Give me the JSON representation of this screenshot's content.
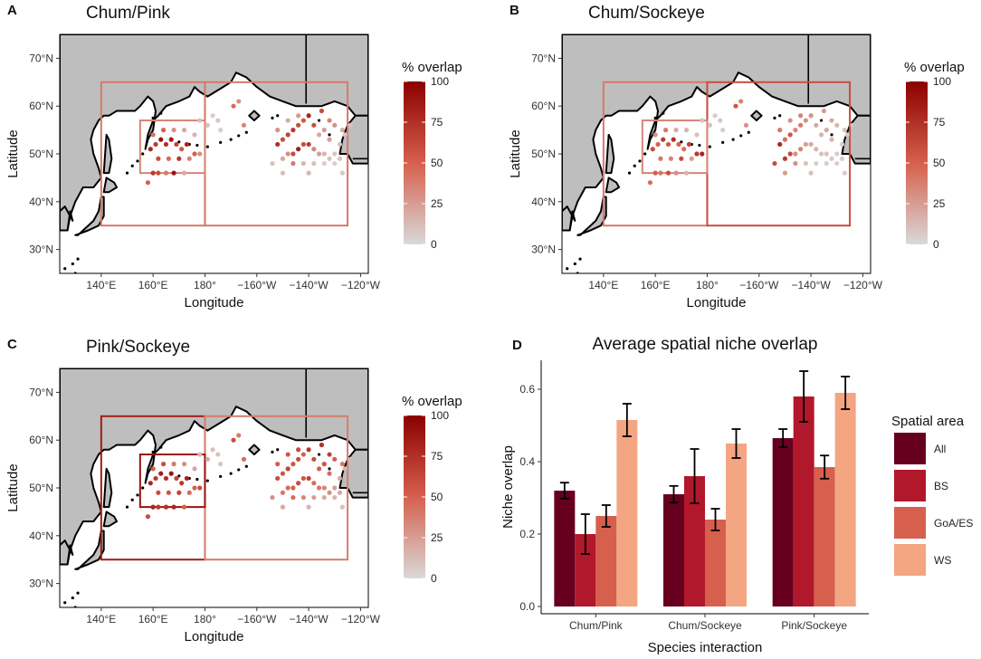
{
  "palette": {
    "all": "#67001f",
    "bs": "#b2182b",
    "goa_es": "#d6604d",
    "ws": "#f4a582",
    "overlap_low": "#d9d9d9",
    "overlap_mid": "#d6604d",
    "overlap_high": "#8b0000",
    "land": "#bebebe",
    "ocean": "#ffffff"
  },
  "maps": [
    {
      "letter": "A",
      "title": "Chum/Pink",
      "boxes": [
        {
          "name": "WS",
          "lon": [
            140,
            180
          ],
          "lat": [
            35,
            65
          ],
          "overlap": 40
        },
        {
          "name": "GoA/ES",
          "lon": [
            180,
            235
          ],
          "lat": [
            35,
            65
          ],
          "overlap": 40
        },
        {
          "name": "BS",
          "lon": [
            155,
            180
          ],
          "lat": [
            46,
            57
          ],
          "overlap": 35
        }
      ],
      "points": [
        [
          160,
          46,
          70
        ],
        [
          162,
          46,
          60
        ],
        [
          165,
          46,
          40
        ],
        [
          168,
          46,
          90
        ],
        [
          172,
          46,
          20
        ],
        [
          158,
          44,
          50
        ],
        [
          159,
          51,
          80
        ],
        [
          161,
          52,
          70
        ],
        [
          163,
          53,
          90
        ],
        [
          165,
          52,
          75
        ],
        [
          167,
          53,
          85
        ],
        [
          169,
          52,
          65
        ],
        [
          171,
          51,
          55
        ],
        [
          173,
          52,
          80
        ],
        [
          162,
          49,
          60
        ],
        [
          166,
          49,
          45
        ],
        [
          170,
          49,
          70
        ],
        [
          174,
          49,
          35
        ],
        [
          176,
          50,
          50
        ],
        [
          178,
          50,
          30
        ],
        [
          160,
          54,
          40
        ],
        [
          164,
          55,
          50
        ],
        [
          168,
          55,
          30
        ],
        [
          172,
          55,
          20
        ],
        [
          176,
          54,
          15
        ],
        [
          178,
          57,
          10
        ],
        [
          181,
          56,
          10
        ],
        [
          183,
          58,
          5
        ],
        [
          185,
          57,
          8
        ],
        [
          186,
          55,
          5
        ],
        [
          191,
          60,
          45
        ],
        [
          193,
          61,
          30
        ],
        [
          195,
          56,
          35
        ],
        [
          208,
          52,
          75
        ],
        [
          210,
          53,
          60
        ],
        [
          212,
          54,
          65
        ],
        [
          214,
          55,
          70
        ],
        [
          216,
          56,
          60
        ],
        [
          218,
          57,
          55
        ],
        [
          220,
          58,
          80
        ],
        [
          222,
          56,
          60
        ],
        [
          224,
          54,
          20
        ],
        [
          226,
          55,
          25
        ],
        [
          212,
          50,
          30
        ],
        [
          214,
          50,
          60
        ],
        [
          216,
          51,
          85
        ],
        [
          218,
          52,
          60
        ],
        [
          220,
          52,
          70
        ],
        [
          222,
          51,
          35
        ],
        [
          224,
          50,
          25
        ],
        [
          226,
          50,
          15
        ],
        [
          228,
          49,
          10
        ],
        [
          230,
          50,
          8
        ],
        [
          232,
          49,
          10
        ],
        [
          210,
          49,
          20
        ],
        [
          214,
          48,
          40
        ],
        [
          218,
          48,
          15
        ],
        [
          222,
          48,
          10
        ],
        [
          226,
          48,
          5
        ],
        [
          230,
          48,
          5
        ],
        [
          232,
          52,
          10
        ],
        [
          234,
          54,
          8
        ],
        [
          206,
          48,
          10
        ],
        [
          208,
          55,
          30
        ],
        [
          212,
          57,
          20
        ],
        [
          216,
          58,
          25
        ],
        [
          225,
          59,
          60
        ],
        [
          228,
          57,
          35
        ],
        [
          230,
          56,
          30
        ],
        [
          233,
          55,
          20
        ],
        [
          228,
          53,
          25
        ],
        [
          236,
          56,
          10
        ],
        [
          210,
          46,
          12
        ],
        [
          220,
          46,
          15
        ],
        [
          233,
          46,
          8
        ]
      ]
    },
    {
      "letter": "B",
      "title": "Chum/Sockeye",
      "boxes": [
        {
          "name": "WS",
          "lon": [
            140,
            180
          ],
          "lat": [
            35,
            65
          ],
          "overlap": 40
        },
        {
          "name": "GoA/ES",
          "lon": [
            180,
            235
          ],
          "lat": [
            35,
            65
          ],
          "overlap": 60
        },
        {
          "name": "BS",
          "lon": [
            155,
            180
          ],
          "lat": [
            46,
            57
          ],
          "overlap": 35
        }
      ],
      "points": [
        [
          160,
          46,
          50
        ],
        [
          162,
          46,
          40
        ],
        [
          165,
          46,
          60
        ],
        [
          168,
          46,
          30
        ],
        [
          158,
          44,
          45
        ],
        [
          172,
          46,
          15
        ],
        [
          159,
          51,
          60
        ],
        [
          161,
          52,
          50
        ],
        [
          163,
          53,
          70
        ],
        [
          165,
          52,
          55
        ],
        [
          167,
          53,
          75
        ],
        [
          169,
          52,
          50
        ],
        [
          171,
          51,
          45
        ],
        [
          173,
          52,
          65
        ],
        [
          162,
          49,
          40
        ],
        [
          166,
          49,
          35
        ],
        [
          170,
          49,
          60
        ],
        [
          174,
          49,
          25
        ],
        [
          176,
          50,
          70
        ],
        [
          178,
          50,
          80
        ],
        [
          160,
          54,
          30
        ],
        [
          164,
          55,
          40
        ],
        [
          168,
          55,
          20
        ],
        [
          172,
          55,
          15
        ],
        [
          176,
          54,
          10
        ],
        [
          178,
          57,
          10
        ],
        [
          181,
          56,
          10
        ],
        [
          183,
          58,
          5
        ],
        [
          185,
          57,
          8
        ],
        [
          186,
          55,
          5
        ],
        [
          191,
          60,
          55
        ],
        [
          193,
          61,
          35
        ],
        [
          195,
          56,
          30
        ],
        [
          208,
          52,
          80
        ],
        [
          210,
          53,
          45
        ],
        [
          212,
          54,
          55
        ],
        [
          214,
          55,
          35
        ],
        [
          216,
          56,
          40
        ],
        [
          218,
          57,
          30
        ],
        [
          220,
          58,
          30
        ],
        [
          222,
          56,
          20
        ],
        [
          224,
          54,
          15
        ],
        [
          226,
          55,
          20
        ],
        [
          212,
          50,
          60
        ],
        [
          214,
          50,
          30
        ],
        [
          216,
          51,
          35
        ],
        [
          218,
          52,
          25
        ],
        [
          220,
          52,
          20
        ],
        [
          222,
          51,
          15
        ],
        [
          224,
          50,
          10
        ],
        [
          226,
          50,
          10
        ],
        [
          228,
          49,
          8
        ],
        [
          230,
          50,
          5
        ],
        [
          232,
          49,
          5
        ],
        [
          210,
          49,
          70
        ],
        [
          214,
          48,
          30
        ],
        [
          218,
          48,
          10
        ],
        [
          222,
          48,
          5
        ],
        [
          226,
          48,
          5
        ],
        [
          230,
          48,
          5
        ],
        [
          232,
          52,
          5
        ],
        [
          234,
          54,
          5
        ],
        [
          206,
          48,
          60
        ],
        [
          208,
          55,
          40
        ],
        [
          212,
          57,
          30
        ],
        [
          216,
          58,
          35
        ],
        [
          225,
          59,
          25
        ],
        [
          228,
          57,
          20
        ],
        [
          230,
          56,
          15
        ],
        [
          233,
          55,
          10
        ],
        [
          228,
          53,
          15
        ],
        [
          236,
          56,
          10
        ],
        [
          210,
          46,
          25
        ],
        [
          220,
          46,
          10
        ],
        [
          233,
          46,
          5
        ]
      ]
    },
    {
      "letter": "C",
      "title": "Pink/Sockeye",
      "boxes": [
        {
          "name": "WS",
          "lon": [
            140,
            180
          ],
          "lat": [
            35,
            65
          ],
          "overlap": 85
        },
        {
          "name": "GoA/ES",
          "lon": [
            180,
            235
          ],
          "lat": [
            35,
            65
          ],
          "overlap": 38
        },
        {
          "name": "BS",
          "lon": [
            155,
            180
          ],
          "lat": [
            46,
            57
          ],
          "overlap": 90
        }
      ],
      "points": [
        [
          160,
          46,
          80
        ],
        [
          162,
          46,
          70
        ],
        [
          165,
          46,
          75
        ],
        [
          168,
          46,
          80
        ],
        [
          158,
          44,
          60
        ],
        [
          172,
          46,
          50
        ],
        [
          159,
          51,
          80
        ],
        [
          161,
          52,
          70
        ],
        [
          163,
          53,
          85
        ],
        [
          165,
          52,
          75
        ],
        [
          167,
          53,
          90
        ],
        [
          169,
          52,
          65
        ],
        [
          171,
          51,
          70
        ],
        [
          173,
          52,
          80
        ],
        [
          162,
          49,
          60
        ],
        [
          166,
          49,
          55
        ],
        [
          170,
          49,
          65
        ],
        [
          174,
          49,
          45
        ],
        [
          176,
          50,
          50
        ],
        [
          178,
          50,
          60
        ],
        [
          160,
          54,
          50
        ],
        [
          164,
          55,
          60
        ],
        [
          168,
          55,
          40
        ],
        [
          172,
          55,
          30
        ],
        [
          176,
          54,
          20
        ],
        [
          178,
          57,
          15
        ],
        [
          181,
          56,
          20
        ],
        [
          183,
          58,
          10
        ],
        [
          185,
          57,
          10
        ],
        [
          186,
          55,
          8
        ],
        [
          191,
          60,
          60
        ],
        [
          193,
          61,
          40
        ],
        [
          195,
          56,
          45
        ],
        [
          208,
          52,
          60
        ],
        [
          210,
          53,
          55
        ],
        [
          212,
          54,
          65
        ],
        [
          214,
          55,
          55
        ],
        [
          216,
          56,
          60
        ],
        [
          218,
          57,
          50
        ],
        [
          220,
          58,
          70
        ],
        [
          222,
          56,
          60
        ],
        [
          224,
          54,
          50
        ],
        [
          226,
          55,
          55
        ],
        [
          212,
          50,
          45
        ],
        [
          214,
          50,
          50
        ],
        [
          216,
          51,
          60
        ],
        [
          218,
          52,
          55
        ],
        [
          220,
          52,
          65
        ],
        [
          222,
          51,
          45
        ],
        [
          224,
          50,
          40
        ],
        [
          226,
          50,
          35
        ],
        [
          228,
          49,
          30
        ],
        [
          230,
          50,
          25
        ],
        [
          232,
          49,
          20
        ],
        [
          210,
          49,
          40
        ],
        [
          214,
          48,
          45
        ],
        [
          218,
          48,
          35
        ],
        [
          222,
          48,
          25
        ],
        [
          226,
          48,
          20
        ],
        [
          230,
          48,
          15
        ],
        [
          232,
          52,
          20
        ],
        [
          234,
          54,
          15
        ],
        [
          206,
          48,
          30
        ],
        [
          208,
          55,
          50
        ],
        [
          212,
          57,
          55
        ],
        [
          216,
          58,
          60
        ],
        [
          225,
          59,
          75
        ],
        [
          228,
          57,
          65
        ],
        [
          230,
          56,
          50
        ],
        [
          233,
          55,
          40
        ],
        [
          228,
          53,
          45
        ],
        [
          236,
          56,
          15
        ],
        [
          210,
          46,
          20
        ],
        [
          220,
          46,
          15
        ],
        [
          233,
          46,
          10
        ]
      ]
    }
  ],
  "map_axes": {
    "xlabel": "Longitude",
    "ylabel": "Latitude",
    "lon_range": [
      124,
      243
    ],
    "lat_range": [
      25,
      75
    ],
    "lon_ticks": [
      {
        "value": 140,
        "label": "140°E"
      },
      {
        "value": 160,
        "label": "160°E"
      },
      {
        "value": 180,
        "label": "180°"
      },
      {
        "value": 200,
        "label": "−160°W"
      },
      {
        "value": 220,
        "label": "−140°W"
      },
      {
        "value": 240,
        "label": "−120°W"
      }
    ],
    "lat_ticks": [
      {
        "value": 30,
        "label": "30°N"
      },
      {
        "value": 40,
        "label": "40°N"
      },
      {
        "value": 50,
        "label": "50°N"
      },
      {
        "value": 60,
        "label": "60°N"
      },
      {
        "value": 70,
        "label": "70°N"
      }
    ]
  },
  "overlap_legend": {
    "title": "% overlap",
    "ticks": [
      {
        "value": 100,
        "label": "100"
      },
      {
        "value": 75,
        "label": "75"
      },
      {
        "value": 50,
        "label": "50"
      },
      {
        "value": 25,
        "label": "25"
      },
      {
        "value": 0,
        "label": "0"
      }
    ]
  },
  "chart_data": {
    "letter": "D",
    "type": "bar",
    "title": "Average spatial niche overlap",
    "xlabel": "Species interaction",
    "ylabel": "Niche overlap",
    "ylim": [
      -0.02,
      0.68
    ],
    "yticks": [
      {
        "value": 0,
        "label": "0.0"
      },
      {
        "value": 0.2,
        "label": "0.2"
      },
      {
        "value": 0.4,
        "label": "0.4"
      },
      {
        "value": 0.6,
        "label": "0.6"
      }
    ],
    "categories": [
      "Chum/Pink",
      "Chum/Sockeye",
      "Pink/Sockeye"
    ],
    "series": [
      {
        "name": "All",
        "color_key": "all",
        "values": [
          0.32,
          0.31,
          0.465
        ],
        "errors": [
          0.022,
          0.023,
          0.025
        ]
      },
      {
        "name": "BS",
        "color_key": "bs",
        "values": [
          0.2,
          0.36,
          0.58
        ],
        "errors": [
          0.055,
          0.075,
          0.07
        ]
      },
      {
        "name": "GoA/ES",
        "color_key": "goa_es",
        "values": [
          0.25,
          0.24,
          0.385
        ],
        "errors": [
          0.03,
          0.03,
          0.032
        ]
      },
      {
        "name": "WS",
        "color_key": "ws",
        "values": [
          0.515,
          0.45,
          0.59
        ],
        "errors": [
          0.045,
          0.04,
          0.045
        ]
      }
    ],
    "legend_title": "Spatial area",
    "legend_position": "right"
  }
}
